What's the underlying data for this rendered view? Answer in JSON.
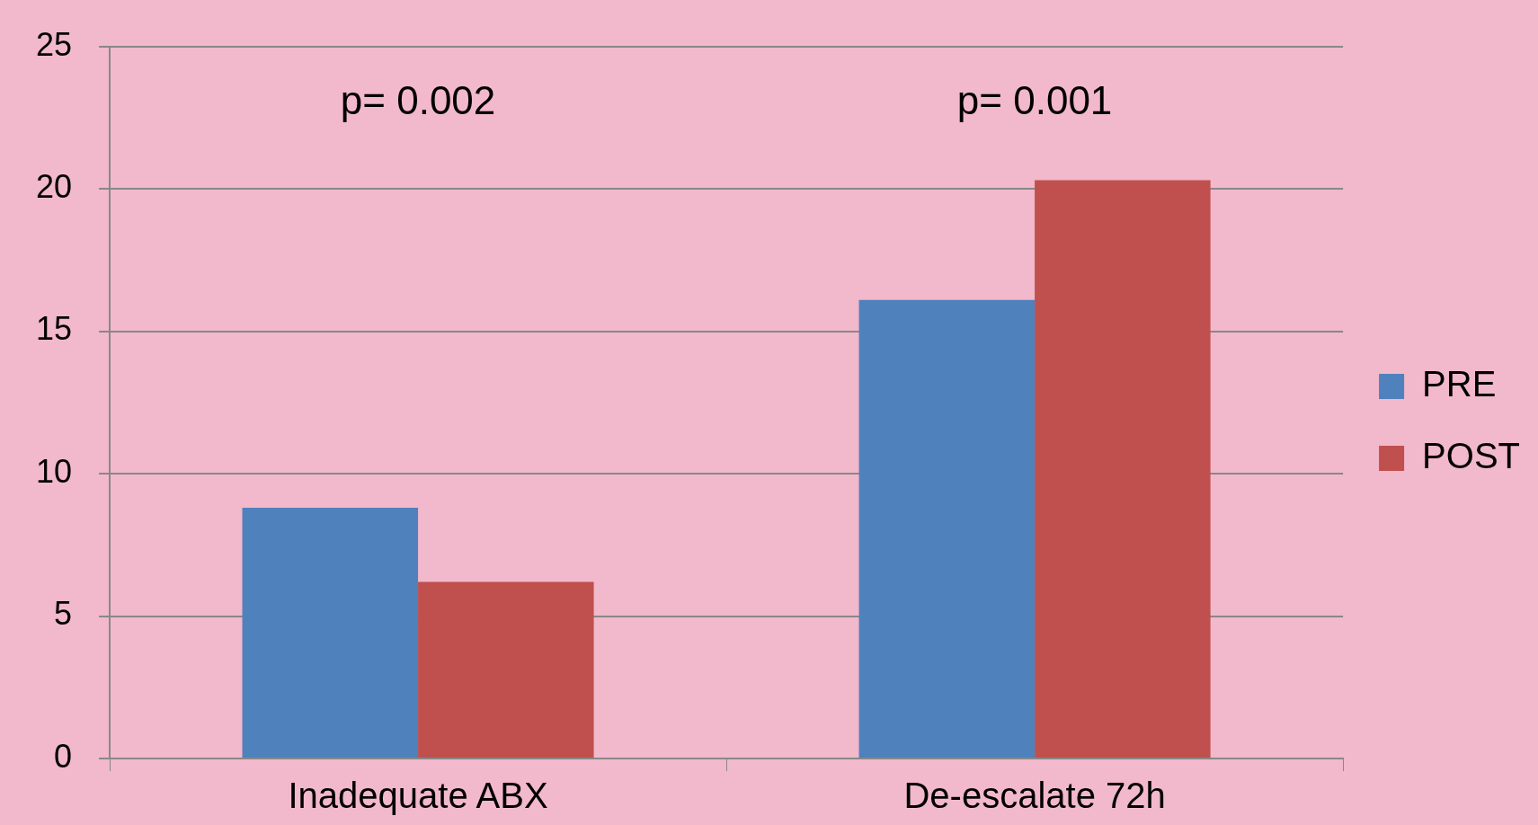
{
  "chart_data": {
    "type": "bar",
    "categories": [
      "Inadequate ABX",
      "De-escalate 72h"
    ],
    "series": [
      {
        "name": "PRE",
        "color": "#4f81bd",
        "values": [
          8.8,
          16.1
        ]
      },
      {
        "name": "POST",
        "color": "#c0504d",
        "values": [
          6.2,
          20.3
        ]
      }
    ],
    "ylim": [
      0,
      25
    ],
    "yticks": [
      0,
      5,
      10,
      15,
      20,
      25
    ],
    "grid": "y",
    "legend": "right",
    "annotations": [
      "p= 0.002",
      "p= 0.001"
    ]
  }
}
